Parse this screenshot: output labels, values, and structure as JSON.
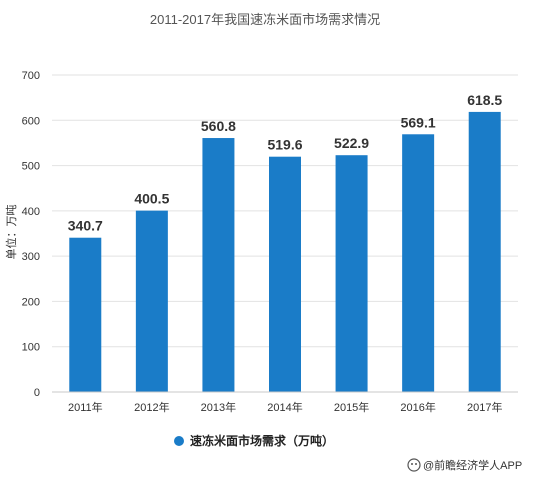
{
  "chart_data": {
    "type": "bar",
    "title": "2011-2017年我国速冻米面市场需求情况",
    "categories": [
      "2011年",
      "2012年",
      "2013年",
      "2014年",
      "2015年",
      "2016年",
      "2017年"
    ],
    "series": [
      {
        "name": "速冻米面市场需求（万吨）",
        "values": [
          340.7,
          400.5,
          560.8,
          519.6,
          522.9,
          569.1,
          618.5
        ]
      }
    ],
    "xlabel": "",
    "ylabel": "单位：万吨",
    "ylim": [
      0,
      700
    ],
    "yticks": [
      0,
      100,
      200,
      300,
      400,
      500,
      600,
      700
    ],
    "grid": true,
    "legend_position": "bottom-left",
    "bar_color": "#1a7cc8"
  },
  "source": {
    "text": "@前瞻经济学人APP"
  }
}
